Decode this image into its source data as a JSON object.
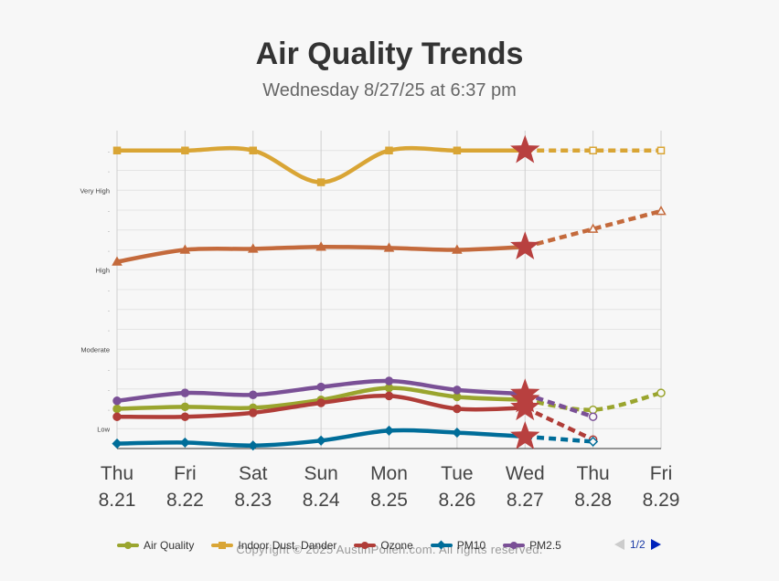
{
  "header": {
    "title": "Air Quality Trends",
    "subtitle": "Wednesday 8/27/25 at 6:37 pm"
  },
  "footer": {
    "copyright": "Copyright © 2025 AustinPollen.com.  All rights reserved."
  },
  "legend": {
    "page_label": "1/2"
  },
  "colors": {
    "background": "#f7f7f7",
    "gridline": "#cfcfcf",
    "now_marker": "#b8403f"
  },
  "chart_data": {
    "type": "line",
    "title": "Air Quality Trends",
    "subtitle": "Wednesday 8/27/25 at 6:37 pm",
    "x_days": [
      "Thu",
      "Fri",
      "Sat",
      "Sun",
      "Mon",
      "Tue",
      "Wed",
      "Thu",
      "Fri"
    ],
    "x_dates": [
      "8.21",
      "8.22",
      "8.23",
      "8.24",
      "8.25",
      "8.26",
      "8.27",
      "8.28",
      "8.29"
    ],
    "y_band_labels": [
      {
        "label": "Low",
        "value": 1
      },
      {
        "label": "Moderate",
        "value": 5
      },
      {
        "label": "High",
        "value": 9
      },
      {
        "label": "Very High",
        "value": 13
      }
    ],
    "ylim": [
      0,
      16
    ],
    "grid": true,
    "forecast_from_index": 6,
    "now_index": 6,
    "now_marker": "star",
    "legend_position": "bottom",
    "series": [
      {
        "name": "Air Quality",
        "color": "#9aa52e",
        "marker": "circle",
        "values": [
          2.0,
          2.1,
          2.05,
          2.45,
          3.05,
          2.6,
          2.45,
          1.95,
          2.8
        ]
      },
      {
        "name": "Indoor Dust, Dander",
        "color": "#d9a535",
        "marker": "square",
        "values": [
          15.0,
          15.0,
          15.0,
          13.4,
          15.0,
          15.0,
          15.0,
          15.0,
          15.0
        ]
      },
      {
        "name": "Ozone",
        "color": "#b03d38",
        "marker": "circle",
        "values": [
          1.6,
          1.6,
          1.8,
          2.3,
          2.65,
          2.0,
          2.05,
          0.45,
          null
        ]
      },
      {
        "name": "PM10",
        "color": "#006d99",
        "marker": "diamond",
        "values": [
          0.25,
          0.3,
          0.15,
          0.4,
          0.9,
          0.8,
          0.6,
          0.35,
          null
        ]
      },
      {
        "name": "PM2.5",
        "color": "#7a5096",
        "marker": "circle",
        "values": [
          2.4,
          2.8,
          2.7,
          3.1,
          3.4,
          2.95,
          2.75,
          1.6,
          null
        ]
      },
      {
        "name": "",
        "color": "#c46a3c",
        "marker": "triangle",
        "values": [
          9.4,
          10.0,
          10.05,
          10.15,
          10.1,
          10.0,
          10.15,
          11.05,
          11.95
        ]
      }
    ]
  }
}
